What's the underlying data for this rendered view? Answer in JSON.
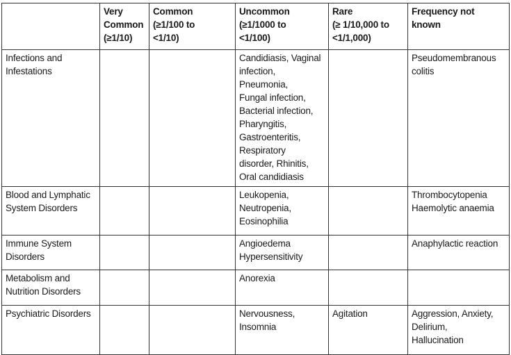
{
  "table": {
    "headers": [
      "",
      "Very\nCommon\n(≥1/10)",
      "Common\n(≥1/100 to\n<1/10)",
      "Uncommon\n(≥1/1000 to\n<1/100)",
      "Rare\n(≥ 1/10,000 to\n<1/1,000)",
      "Frequency not\nknown"
    ],
    "rows": [
      {
        "soc": "Infections and\nInfestations",
        "very_common": "",
        "common": "",
        "uncommon": "Candidiasis, Vaginal\ninfection, Pneumonia,\nFungal infection,\nBacterial infection,\nPharyngitis,\nGastroenteritis,\nRespiratory\ndisorder, Rhinitis,\nOral candidiasis",
        "rare": "",
        "not_known": "Pseudomembranous\ncolitis"
      },
      {
        "soc": "Blood and Lymphatic\nSystem Disorders",
        "very_common": "",
        "common": "",
        "uncommon": "Leukopenia,\nNeutropenia,\nEosinophilia",
        "rare": "",
        "not_known": "Thrombocytopenia\nHaemolytic anaemia"
      },
      {
        "soc": "Immune System\nDisorders",
        "very_common": "",
        "common": "",
        "uncommon": "Angioedema\nHypersensitivity",
        "rare": "",
        "not_known": "Anaphylactic reaction"
      },
      {
        "soc": "Metabolism and\nNutrition Disorders",
        "very_common": "",
        "common": "",
        "uncommon": "Anorexia",
        "rare": "",
        "not_known": ""
      },
      {
        "soc": "Psychiatric Disorders",
        "very_common": "",
        "common": "",
        "uncommon": "Nervousness,\nInsomnia",
        "rare": "Agitation",
        "not_known": "Aggression, Anxiety,\nDelirium,\nHallucination"
      }
    ]
  }
}
